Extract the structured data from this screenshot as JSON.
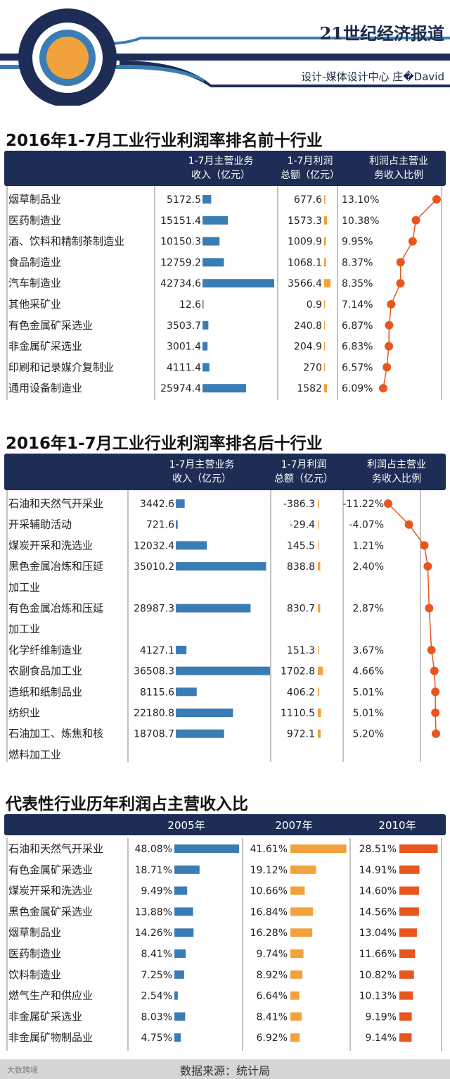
{
  "header": {
    "brand": "21世纪经济报道",
    "credit": "设计-媒体设计中心  庄�David"
  },
  "section1": {
    "title": "2016年1-7月工业行业利润率排名前十行业",
    "col1": [
      "1-7月主营业务",
      "收入（亿元）"
    ],
    "col2": [
      "1-7月利润",
      "总额（亿元）"
    ],
    "col3": [
      "利润占主营业",
      "务收入比例"
    ]
  },
  "section2": {
    "title": "2016年1-7月工业行业利润率排名后十行业",
    "col1": [
      "1-7月主营业务",
      "收入（亿元）"
    ],
    "col2": [
      "1-7月利润",
      "总额（亿元）"
    ],
    "col3": [
      "利润占主营业",
      "务收入比例"
    ]
  },
  "section3": {
    "title": "代表性行业历年利润占主营收入比"
  },
  "footer": {
    "source": "数据来源：统计局",
    "watermark": "大数跨境"
  },
  "colors": {
    "navy": "#1d2d55",
    "blue": "#3a7db5",
    "amber": "#f2a23c",
    "orange": "#e8561e"
  },
  "chart_data": [
    {
      "type": "table",
      "title": "2016年1-7月工业行业利润率排名前十行业",
      "columns": [
        "1-7月主营业务收入（亿元）",
        "1-7月利润总额（亿元）",
        "利润占主营业务收入比例"
      ],
      "rows": [
        {
          "name": "烟草制品业",
          "revenue": "5172.5",
          "profit": "677.6",
          "ratio": "13.10%"
        },
        {
          "name": "医药制造业",
          "revenue": "15151.4",
          "profit": "1573.3",
          "ratio": "10.38%"
        },
        {
          "name": "酒、饮料和精制茶制造业",
          "revenue": "10150.3",
          "profit": "1009.9",
          "ratio": "9.95%"
        },
        {
          "name": "食品制造业",
          "revenue": "12759.2",
          "profit": "1068.1",
          "ratio": "8.37%"
        },
        {
          "name": "汽车制造业",
          "revenue": "42734.6",
          "profit": "3566.4",
          "ratio": "8.35%"
        },
        {
          "name": "其他采矿业",
          "revenue": "12.6",
          "profit": "0.9",
          "ratio": "7.14%"
        },
        {
          "name": "有色金属矿采选业",
          "revenue": "3503.7",
          "profit": "240.8",
          "ratio": "6.87%"
        },
        {
          "name": "非金属矿采选业",
          "revenue": "3001.4",
          "profit": "204.9",
          "ratio": "6.83%"
        },
        {
          "name": "印刷和记录媒介复制业",
          "revenue": "4111.4",
          "profit": "270",
          "ratio": "6.57%"
        },
        {
          "name": "通用设备制造业",
          "revenue": "25974.4",
          "profit": "1582",
          "ratio": "6.09%"
        }
      ]
    },
    {
      "type": "table",
      "title": "2016年1-7月工业行业利润率排名后十行业",
      "columns": [
        "1-7月主营业务收入（亿元）",
        "1-7月利润总额（亿元）",
        "利润占主营业务收入比例"
      ],
      "rows": [
        {
          "name": [
            "石油和天然气开采业"
          ],
          "revenue": "3442.6",
          "profit": "-386.3",
          "ratio": "-11.22%"
        },
        {
          "name": [
            "开采辅助活动"
          ],
          "revenue": "721.6",
          "profit": "-29.4",
          "ratio": "-4.07%"
        },
        {
          "name": [
            "煤炭开采和洗选业"
          ],
          "revenue": "12032.4",
          "profit": "145.5",
          "ratio": "1.21%"
        },
        {
          "name": [
            "黑色金属冶炼和压延",
            "加工业"
          ],
          "revenue": "35010.2",
          "profit": "838.8",
          "ratio": "2.40%"
        },
        {
          "name": [
            "有色金属冶炼和压延",
            "加工业"
          ],
          "revenue": "28987.3",
          "profit": "830.7",
          "ratio": "2.87%"
        },
        {
          "name": [
            "化学纤维制造业"
          ],
          "revenue": "4127.1",
          "profit": "151.3",
          "ratio": "3.67%"
        },
        {
          "name": [
            "农副食品加工业"
          ],
          "revenue": "36508.3",
          "profit": "1702.8",
          "ratio": "4.66%"
        },
        {
          "name": [
            "造纸和纸制品业"
          ],
          "revenue": "8115.6",
          "profit": "406.2",
          "ratio": "5.01%"
        },
        {
          "name": [
            "纺织业"
          ],
          "revenue": "22180.8",
          "profit": "1110.5",
          "ratio": "5.01%"
        },
        {
          "name": [
            "石油加工、炼焦和核",
            "燃料加工业"
          ],
          "revenue": "18708.7",
          "profit": "972.1",
          "ratio": "5.20%"
        }
      ]
    },
    {
      "type": "bar",
      "title": "代表性行业历年利润占主营收入比",
      "categories": [
        "石油和天然气开采业",
        "有色金属矿采选业",
        "煤炭开采和洗选业",
        "黑色金属矿采选业",
        "烟草制品业",
        "医药制造业",
        "饮料制造业",
        "燃气生产和供应业",
        "非金属矿采选业",
        "非金属矿物制品业"
      ],
      "series": [
        {
          "name": "2005年",
          "values": [
            "48.08%",
            "18.71%",
            "9.49%",
            "13.88%",
            "14.26%",
            "8.41%",
            "7.25%",
            "2.54%",
            "8.03%",
            "4.75%"
          ]
        },
        {
          "name": "2007年",
          "values": [
            "41.61%",
            "19.12%",
            "10.66%",
            "16.84%",
            "16.28%",
            "9.74%",
            "8.92%",
            "6.64%",
            "8.41%",
            "6.92%"
          ]
        },
        {
          "name": "2010年",
          "values": [
            "28.51%",
            "14.91%",
            "14.60%",
            "14.56%",
            "13.04%",
            "11.66%",
            "10.82%",
            "10.13%",
            "9.19%",
            "9.14%"
          ]
        }
      ]
    }
  ]
}
